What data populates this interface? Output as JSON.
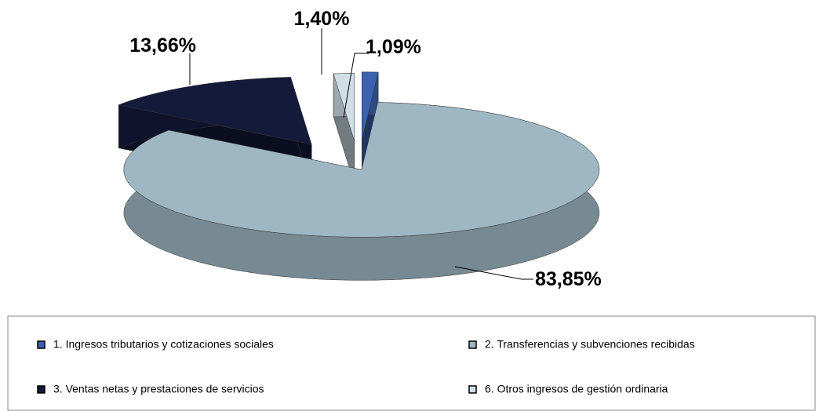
{
  "chart_data": {
    "type": "pie",
    "categories": [
      "1. Ingresos tributarios y cotizaciones sociales",
      "2. Transferencias y subvenciones recibidas",
      "3. Ventas netas y prestaciones de servicios",
      "6. Otros ingresos de gestión ordinaria"
    ],
    "values": [
      1.09,
      83.85,
      13.66,
      1.4
    ],
    "value_labels": [
      "1,09%",
      "83,85%",
      "13,66%",
      "1,40%"
    ],
    "colors": [
      "#3a62b0",
      "#9fb6c3",
      "#141a3a",
      "#d0dfe6"
    ]
  }
}
